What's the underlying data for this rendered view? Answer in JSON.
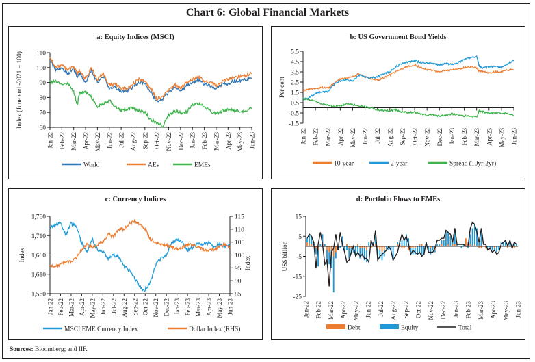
{
  "page": {
    "title": "Chart 6: Global Financial Markets",
    "sources_label": "Sources:",
    "sources_text": "Bloomberg; and IIF."
  },
  "chart_data": [
    {
      "id": "a",
      "type": "line",
      "title": "a: Equity Indices (MSCI)",
      "ylabel": "Index (June end -2021 = 100)",
      "xlabel": "",
      "ylim": [
        60,
        110
      ],
      "yticks": [
        60,
        70,
        80,
        90,
        100,
        110
      ],
      "ytick_labels": [
        "60",
        "70",
        "80",
        "90",
        "100",
        "110"
      ],
      "x_tick_labels": [
        "Jan-22",
        "Feb-22",
        "Mar-22",
        "Apr-22",
        "May-22",
        "Jun-22",
        "Jul-22",
        "Aug-22",
        "Sep-22",
        "Oct-22",
        "Nov-22",
        "Dec-22",
        "Jan-23",
        "Feb-23",
        "Mar-23",
        "Apr-23",
        "May-23",
        "Jun-23"
      ],
      "x_month_index": [
        0,
        0.5,
        1,
        1.5,
        2,
        2.3,
        2.5,
        3,
        3.5,
        4,
        4.5,
        5,
        5.5,
        6,
        6.5,
        7,
        7.5,
        8,
        8.5,
        9,
        9.5,
        10,
        10.5,
        11,
        11.5,
        12,
        12.5,
        13,
        13.5,
        14,
        14.5,
        15,
        15.5,
        16,
        16.5,
        17
      ],
      "series": [
        {
          "name": "World",
          "color": "#2e75b6",
          "values": [
            105,
            98,
            100,
            96,
            99,
            94,
            96,
            90,
            98,
            90,
            94,
            86,
            87,
            84,
            84,
            87,
            90,
            89,
            84,
            77,
            79,
            83,
            87,
            84,
            88,
            90,
            92,
            89,
            88,
            86,
            89,
            89,
            91,
            91,
            92,
            93
          ]
        },
        {
          "name": "AEs",
          "color": "#ed7d31",
          "values": [
            107,
            100,
            102,
            98,
            101,
            96,
            98,
            92,
            100,
            92,
            96,
            88,
            89,
            86,
            86,
            89,
            92,
            91,
            86,
            79,
            81,
            85,
            89,
            86,
            90,
            92,
            94,
            91,
            90,
            88,
            91,
            92,
            93,
            94,
            95,
            96
          ]
        },
        {
          "name": "EMEs",
          "color": "#3cb44b",
          "values": [
            90,
            91,
            88,
            90,
            84,
            75,
            83,
            84,
            80,
            74,
            76,
            78,
            74,
            71,
            72,
            73,
            71,
            70,
            65,
            63,
            61,
            68,
            71,
            70,
            70,
            75,
            76,
            74,
            71,
            69,
            71,
            72,
            71,
            71,
            70,
            73
          ]
        }
      ],
      "legend": "bottom"
    },
    {
      "id": "b",
      "type": "line",
      "title": "b: US  Government Bond Yields",
      "ylabel": "Per cent",
      "xlabel": "",
      "ylim": [
        -1.5,
        5.5
      ],
      "yticks": [
        -1.5,
        -0.5,
        0.5,
        1.5,
        2.5,
        3.5,
        4.5,
        5.5
      ],
      "ytick_labels": [
        "-1.5",
        "-0.5",
        "0.5",
        "1.5",
        "2.5",
        "3.5",
        "4.5",
        "5.5"
      ],
      "x_tick_labels": [
        "Jan-22",
        "Feb-22",
        "Mar-22",
        "Apr-22",
        "May-22",
        "Jun-22",
        "Jul-22",
        "Aug-22",
        "Sep-22",
        "Oct-22",
        "Nov-22",
        "Dec-22",
        "Jan-23",
        "Feb-23",
        "Mar-23",
        "Apr-23",
        "May-23",
        "Jun-23"
      ],
      "x_month_index": [
        0,
        0.5,
        1,
        1.5,
        2,
        2.5,
        3,
        3.5,
        4,
        4.5,
        5,
        5.5,
        6,
        6.5,
        7,
        7.5,
        8,
        8.5,
        9,
        9.5,
        10,
        10.5,
        11,
        11.5,
        12,
        12.5,
        13,
        13.5,
        14,
        14.2,
        14.5,
        15,
        15.5,
        16,
        16.5,
        17
      ],
      "series": [
        {
          "name": "10-year",
          "color": "#ed7d31",
          "values": [
            1.6,
            1.8,
            1.9,
            2.0,
            1.9,
            2.4,
            2.8,
            2.9,
            3.0,
            3.3,
            3.0,
            2.8,
            2.7,
            2.9,
            3.2,
            3.5,
            3.8,
            4.0,
            4.2,
            3.9,
            3.7,
            3.6,
            3.5,
            3.6,
            3.7,
            3.8,
            3.9,
            4.0,
            3.9,
            3.6,
            3.5,
            3.4,
            3.5,
            3.5,
            3.7,
            3.7
          ]
        },
        {
          "name": "2-year",
          "color": "#1f9ad6",
          "values": [
            0.8,
            1.0,
            1.4,
            1.5,
            1.6,
            2.3,
            2.6,
            2.7,
            2.6,
            3.2,
            3.0,
            2.9,
            3.0,
            3.3,
            3.5,
            4.0,
            4.3,
            4.5,
            4.6,
            4.4,
            4.4,
            4.3,
            4.2,
            4.3,
            4.2,
            4.4,
            4.7,
            4.9,
            5.0,
            4.1,
            3.9,
            4.0,
            4.0,
            3.9,
            4.3,
            4.6
          ]
        },
        {
          "name": "Spread (10yr-2yr)",
          "color": "#3cb44b",
          "values": [
            0.9,
            0.8,
            0.6,
            0.4,
            0.3,
            0.1,
            0.2,
            0.4,
            0.3,
            0.2,
            0.1,
            0.0,
            -0.2,
            -0.3,
            -0.3,
            -0.2,
            -0.4,
            -0.5,
            -0.4,
            -0.6,
            -0.7,
            -0.7,
            -0.8,
            -0.7,
            -0.6,
            -0.7,
            -0.8,
            -0.8,
            -0.9,
            -0.3,
            -0.4,
            -0.5,
            -0.5,
            -0.5,
            -0.6,
            -0.8
          ]
        }
      ],
      "legend": "bottom"
    },
    {
      "id": "c",
      "type": "line",
      "title": "c: Currency Indices",
      "ylabel": "Index",
      "y2label": "Index",
      "xlabel": "",
      "ylim": [
        1560,
        1760
      ],
      "yticks": [
        1560,
        1610,
        1660,
        1710,
        1760
      ],
      "ytick_labels": [
        "1,560",
        "1,610",
        "1,660",
        "1,710",
        "1,760"
      ],
      "y2lim": [
        85,
        115
      ],
      "y2ticks": [
        85,
        90,
        95,
        100,
        105,
        110,
        115
      ],
      "y2tick_labels": [
        "85",
        "90",
        "95",
        "100",
        "105",
        "110",
        "115"
      ],
      "x_tick_labels": [
        "Jan-22",
        "Feb-22",
        "Mar-22",
        "Apr-22",
        "May-22",
        "Jun-22",
        "Jul-22",
        "Aug-22",
        "Sep-22",
        "Oct-22",
        "Nov-22",
        "Dec-22",
        "Jan-23",
        "Feb-23",
        "Mar-23",
        "Apr-23",
        "May-23",
        "Jun-23"
      ],
      "x_month_index": [
        0,
        0.5,
        1,
        1.5,
        2,
        2.5,
        3,
        3.5,
        4,
        4.5,
        5,
        5.5,
        6,
        6.5,
        7,
        7.5,
        8,
        8.5,
        9,
        9.5,
        10,
        10.5,
        11,
        11.5,
        12,
        12.5,
        13,
        13.5,
        14,
        14.5,
        15,
        15.5,
        16,
        16.5,
        17
      ],
      "series": [
        {
          "name": "MSCI EME Currency Index",
          "axis": "left",
          "color": "#1f9ad6",
          "values": [
            1730,
            1735,
            1745,
            1712,
            1742,
            1735,
            1690,
            1668,
            1700,
            1672,
            1668,
            1650,
            1660,
            1655,
            1630,
            1620,
            1600,
            1575,
            1570,
            1590,
            1635,
            1650,
            1660,
            1690,
            1700,
            1695,
            1672,
            1680,
            1690,
            1688,
            1692,
            1680,
            1690,
            1682,
            1685
          ]
        },
        {
          "name": "Dollar Index (RHS)",
          "axis": "right",
          "color": "#ed7d31",
          "values": [
            96,
            95.5,
            96.5,
            97,
            97.5,
            99,
            102,
            104,
            103,
            104,
            105,
            108,
            107,
            110,
            110,
            112,
            113,
            112,
            110,
            106,
            105,
            104,
            104,
            103,
            102,
            103,
            104,
            104,
            103,
            102,
            102,
            102,
            103,
            104,
            103
          ]
        }
      ],
      "legend": "bottom"
    },
    {
      "id": "d",
      "type": "bar",
      "title": "d: Portfolio Flows to EMEs",
      "ylabel": "US$ billion",
      "xlabel": "",
      "ylim": [
        -25,
        15
      ],
      "yticks": [
        -25,
        -15,
        -5,
        5,
        15
      ],
      "ytick_labels": [
        "-25",
        "-15",
        "-5",
        "5",
        "15"
      ],
      "x_tick_labels": [
        "Jan-22",
        "Feb-22",
        "Mar-22",
        "Apr-22",
        "May-22",
        "Jun-22",
        "Jul-22",
        "Aug-22",
        "Sep-22",
        "Oct-22",
        "Nov-22",
        "Dec-22",
        "Jan-23",
        "Feb-23",
        "Mar-23",
        "Apr-23",
        "May-23",
        "Jun-23"
      ],
      "weeks_per_month": 4.25,
      "series": [
        {
          "name": "Debt",
          "color": "#ed7d31",
          "values": [
            2,
            1.5,
            1,
            0,
            -1,
            -2,
            0,
            1,
            0,
            -2,
            -3,
            -2,
            -5,
            -3,
            -1,
            0,
            0,
            0,
            1,
            -1,
            -1,
            0,
            0,
            1,
            -1,
            -1,
            -1,
            -2,
            0,
            -1,
            0,
            1,
            -1,
            -2,
            -3,
            -2,
            0,
            0,
            0,
            0,
            0,
            1,
            1,
            -1,
            -1,
            0,
            -2,
            -1,
            -1,
            -1,
            0,
            1,
            1,
            0,
            0,
            0,
            -1,
            0,
            -2,
            0,
            0,
            1,
            0,
            0,
            1,
            0,
            1,
            1,
            0,
            0,
            0,
            0,
            4,
            2,
            1,
            0,
            1,
            0,
            -1,
            -1,
            0,
            -1,
            0,
            0,
            0,
            -1,
            0,
            0,
            1,
            0,
            0,
            -1,
            0,
            0,
            -1,
            0
          ]
        },
        {
          "name": "Equity",
          "color": "#1f9ad6",
          "values": [
            2,
            4,
            4,
            2,
            -3,
            -8,
            1,
            5,
            1,
            -7,
            -6,
            -9,
            -18,
            -3,
            -1,
            -1,
            5,
            -2,
            -2,
            -5,
            -3,
            -3,
            -4,
            -3,
            -5,
            -4,
            -6,
            -6,
            2,
            1,
            2,
            4,
            -5,
            -4,
            -4,
            -3,
            -2,
            -2,
            -2,
            -7,
            0,
            1,
            2,
            3,
            4,
            6,
            4,
            -2,
            -3,
            -3,
            -4,
            -3,
            -5,
            -4,
            2,
            -3,
            -3,
            -2,
            -1,
            1,
            1,
            2,
            3,
            8,
            6,
            5,
            3,
            8,
            1,
            0,
            -1,
            1,
            0,
            -1,
            5,
            9,
            10,
            9,
            2,
            7,
            0,
            0,
            -1,
            -1,
            -2,
            -1,
            -3,
            -2,
            1,
            2,
            3,
            1,
            3,
            -1,
            2,
            1
          ]
        },
        {
          "name": "Total",
          "color": "#231f20",
          "kind": "line",
          "values": [
            4,
            6,
            5,
            2,
            -11,
            1,
            7,
            1,
            -9,
            -7,
            -20,
            -3,
            -1,
            6,
            -2,
            7,
            1,
            -3,
            -8,
            -7,
            -3,
            0,
            -5,
            -3,
            -5,
            -4,
            -6,
            -6,
            -8,
            3,
            0,
            8,
            -7,
            -5,
            -4,
            -3,
            -2,
            0,
            -2,
            -7,
            -5,
            -3,
            2,
            6,
            3,
            5,
            1,
            -4,
            -2,
            -3,
            -4,
            -3,
            -5,
            -4,
            2,
            -3,
            -3,
            -3,
            -1,
            3,
            3,
            4,
            4,
            8,
            7,
            6,
            2,
            9,
            1,
            1,
            1,
            1,
            0,
            0,
            9,
            12,
            11,
            7,
            2,
            9,
            1,
            1,
            -2,
            -1,
            -3,
            -2,
            -4,
            -3,
            1,
            2,
            3,
            0,
            3,
            -1,
            2,
            1
          ]
        }
      ],
      "legend": "bottom"
    }
  ]
}
